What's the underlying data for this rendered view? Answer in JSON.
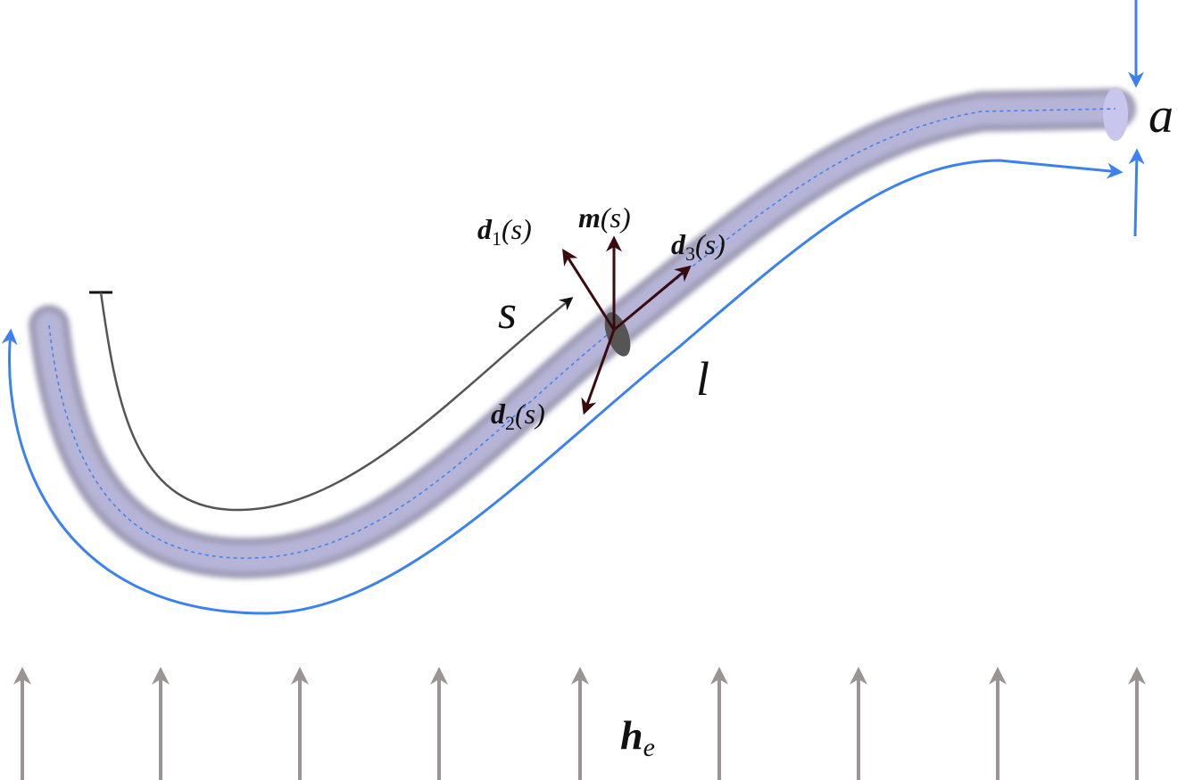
{
  "labels": {
    "a": "a",
    "s": "s",
    "l": "l",
    "d1": {
      "main": "d",
      "sub": "1",
      "arg": "(s)"
    },
    "m": {
      "main": "m",
      "arg": "(s)"
    },
    "d3": {
      "main": "d",
      "sub": "3",
      "arg": "(s)"
    },
    "d2": {
      "main": "d",
      "sub": "2",
      "arg": "(s)"
    },
    "he": {
      "main": "h",
      "sub": "e"
    }
  }
}
